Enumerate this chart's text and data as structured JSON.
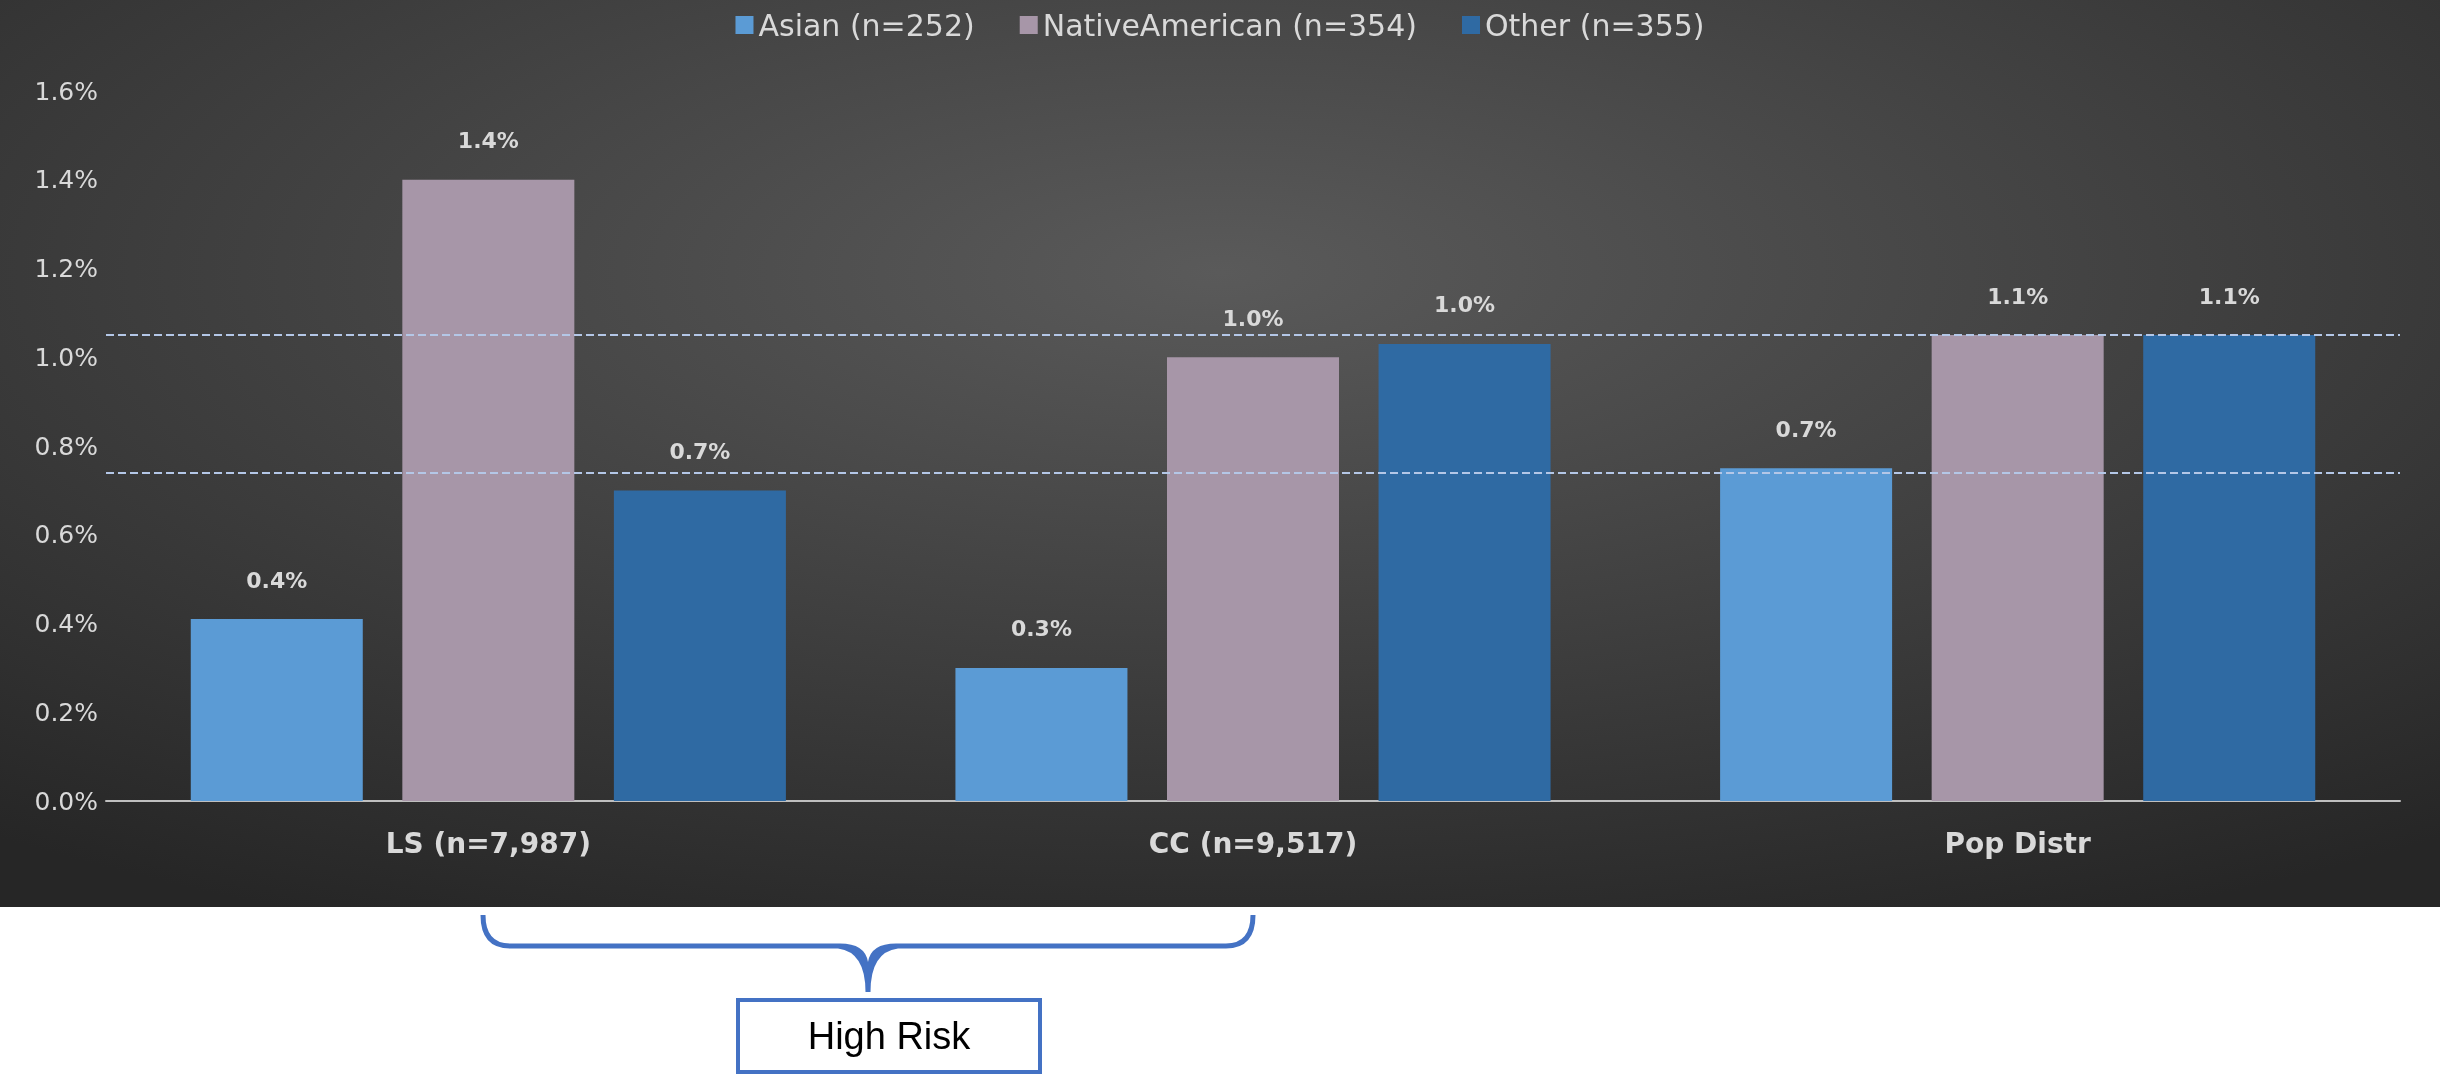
{
  "chart_data": {
    "type": "bar",
    "categories": [
      "LS (n=7,987)",
      "CC (n=9,517)",
      "Pop Distr"
    ],
    "series": [
      {
        "name": "Asian (n=252)",
        "color": "#5b9bd5",
        "values": [
          0.41,
          0.3,
          0.75
        ],
        "value_labels": [
          "0.4%",
          "0.3%",
          "0.7%"
        ]
      },
      {
        "name": "NativeAmerican (n=354)",
        "color": "#a796a8",
        "values": [
          1.4,
          1.0,
          1.05
        ],
        "value_labels": [
          "1.4%",
          "1.0%",
          "1.1%"
        ]
      },
      {
        "name": "Other (n=355)",
        "color": "#2f6aa3",
        "values": [
          0.7,
          1.03,
          1.05
        ],
        "value_labels": [
          "0.7%",
          "1.0%",
          "1.1%"
        ]
      }
    ],
    "ylim": [
      0,
      1.6
    ],
    "yticks": [
      {
        "value": 0,
        "label": "0.0%"
      },
      {
        "value": 0.2,
        "label": "0.2%"
      },
      {
        "value": 0.4,
        "label": "0.4%"
      },
      {
        "value": 0.6,
        "label": "0.6%"
      },
      {
        "value": 0.8,
        "label": "0.8%"
      },
      {
        "value": 1.0,
        "label": "1.0%"
      },
      {
        "value": 1.2,
        "label": "1.2%"
      },
      {
        "value": 1.4,
        "label": "1.4%"
      },
      {
        "value": 1.6,
        "label": "1.6%"
      }
    ],
    "ref_lines": [
      {
        "axis": "y",
        "value": 1.055,
        "color": "#b4c7e7",
        "line_style": "dashed"
      },
      {
        "axis": "y",
        "value": 0.745,
        "color": "#b4c7e7",
        "line_style": "dashed"
      }
    ],
    "annotations": [
      "High Risk"
    ],
    "legend": "top",
    "grid": false
  }
}
